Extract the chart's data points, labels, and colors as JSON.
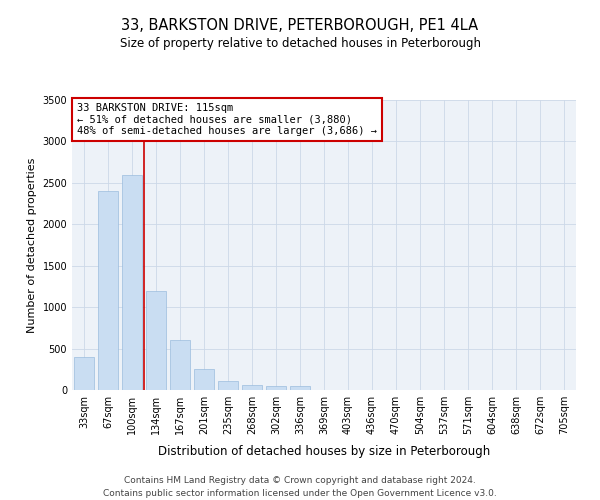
{
  "title": "33, BARKSTON DRIVE, PETERBOROUGH, PE1 4LA",
  "subtitle": "Size of property relative to detached houses in Peterborough",
  "xlabel": "Distribution of detached houses by size in Peterborough",
  "ylabel": "Number of detached properties",
  "categories": [
    "33sqm",
    "67sqm",
    "100sqm",
    "134sqm",
    "167sqm",
    "201sqm",
    "235sqm",
    "268sqm",
    "302sqm",
    "336sqm",
    "369sqm",
    "403sqm",
    "436sqm",
    "470sqm",
    "504sqm",
    "537sqm",
    "571sqm",
    "604sqm",
    "638sqm",
    "672sqm",
    "705sqm"
  ],
  "values": [
    400,
    2400,
    2600,
    1200,
    600,
    250,
    110,
    60,
    50,
    50,
    0,
    0,
    0,
    0,
    0,
    0,
    0,
    0,
    0,
    0,
    0
  ],
  "bar_color": "#c9ddf2",
  "bar_edge_color": "#9bbcde",
  "vline_x": 2.5,
  "annotation_line1": "33 BARKSTON DRIVE: 115sqm",
  "annotation_line2": "← 51% of detached houses are smaller (3,880)",
  "annotation_line3": "48% of semi-detached houses are larger (3,686) →",
  "annotation_box_color": "#ffffff",
  "annotation_box_edge_color": "#cc0000",
  "vline_color": "#cc0000",
  "grid_color": "#ccd8e8",
  "background_color": "#edf2f8",
  "ylim": [
    0,
    3500
  ],
  "yticks": [
    0,
    500,
    1000,
    1500,
    2000,
    2500,
    3000,
    3500
  ],
  "footer_line1": "Contains HM Land Registry data © Crown copyright and database right 2024.",
  "footer_line2": "Contains public sector information licensed under the Open Government Licence v3.0.",
  "title_fontsize": 10.5,
  "subtitle_fontsize": 8.5,
  "xlabel_fontsize": 8.5,
  "ylabel_fontsize": 8,
  "tick_fontsize": 7,
  "annotation_fontsize": 7.5,
  "footer_fontsize": 6.5
}
